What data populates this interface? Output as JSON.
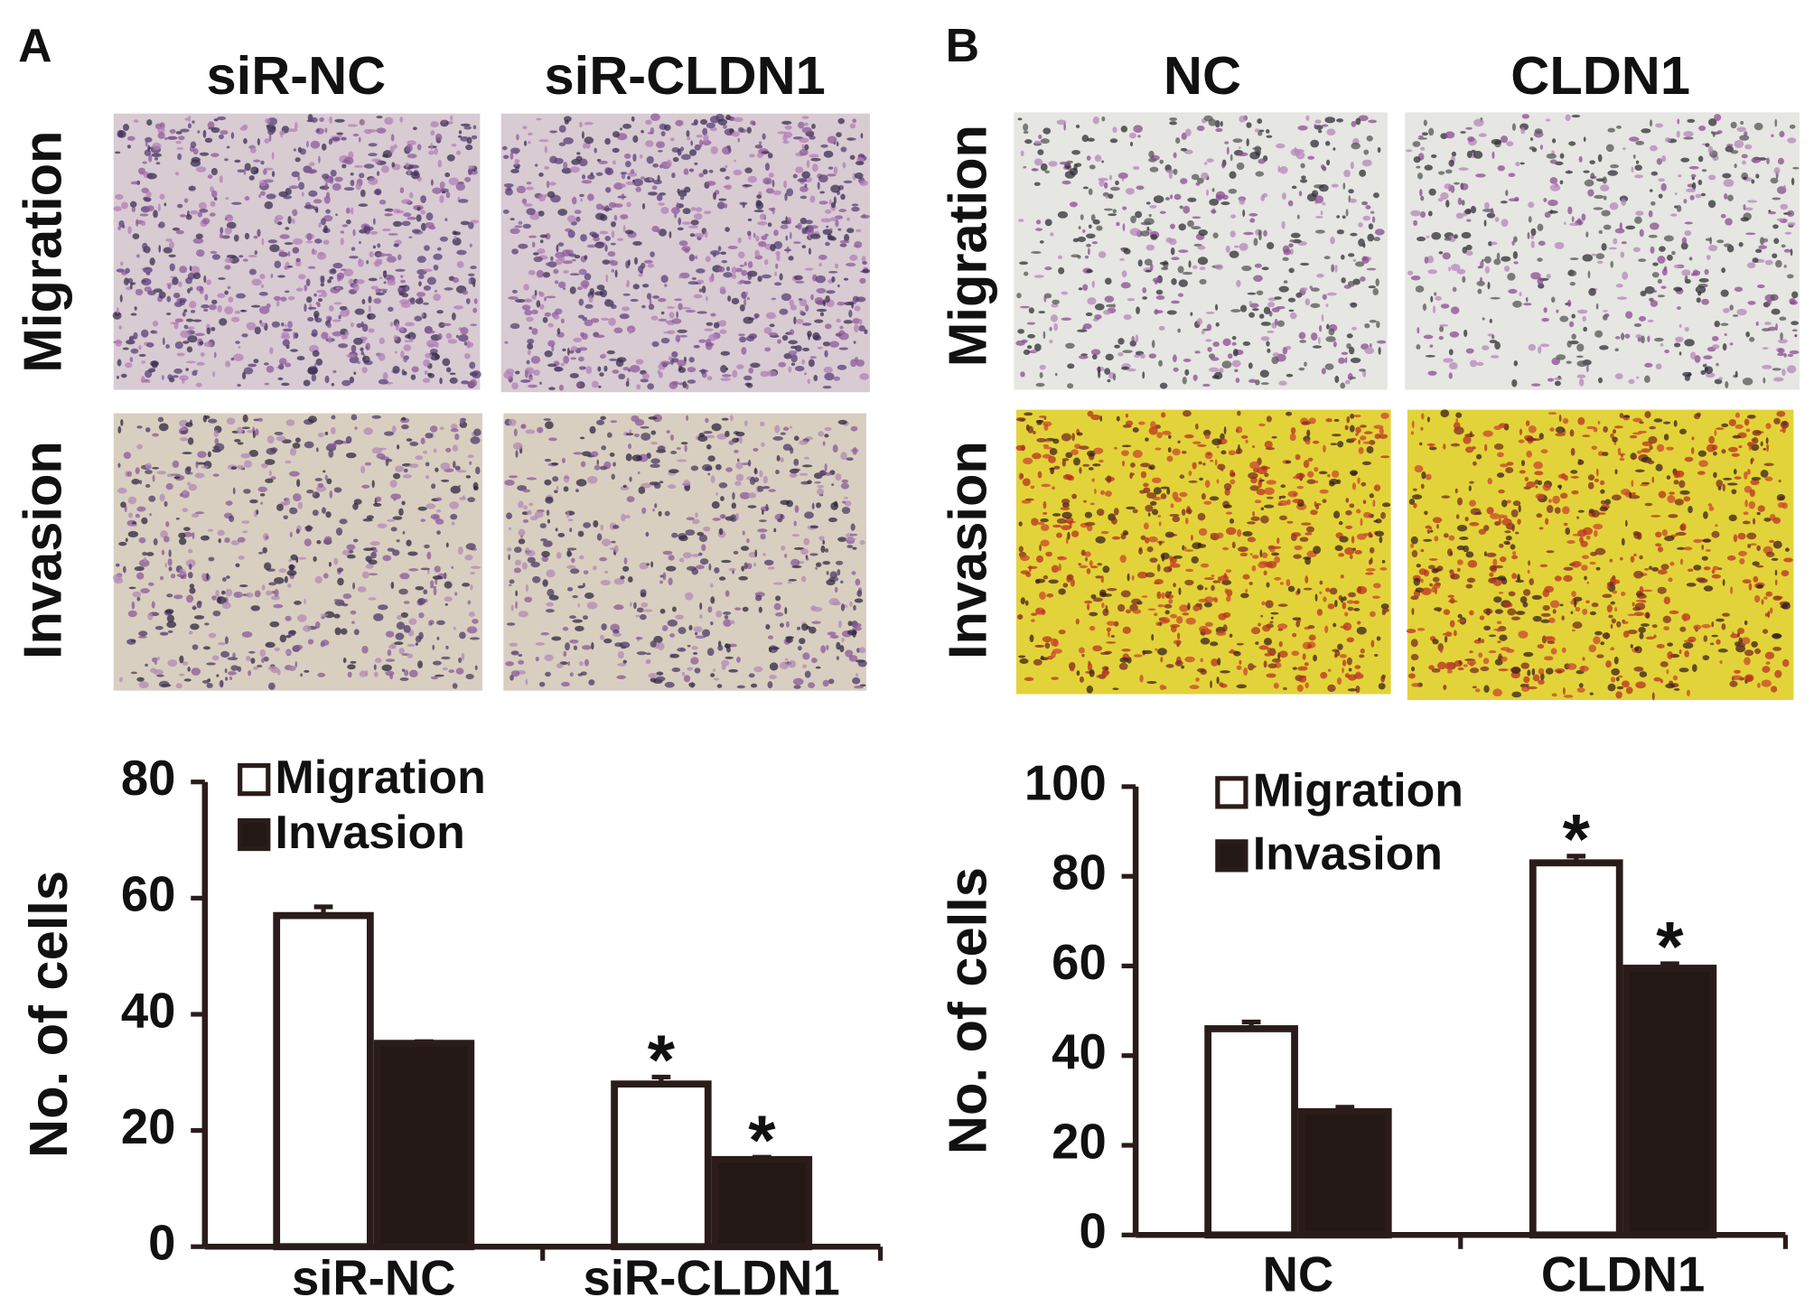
{
  "panels": [
    {
      "label": "A",
      "columns": [
        "siR-NC",
        "siR-CLDN1"
      ],
      "rows": [
        "Migration",
        "Invasion"
      ]
    },
    {
      "label": "B",
      "columns": [
        "NC",
        "CLDN1"
      ],
      "rows": [
        "Migration",
        "Invasion"
      ]
    }
  ],
  "chart_data": [
    {
      "type": "bar",
      "y_label": "No. of cells",
      "categories": [
        "siR-NC",
        "siR-CLDN1"
      ],
      "ylim": [
        0,
        80
      ],
      "yticks": [
        0,
        20,
        40,
        60,
        80
      ],
      "series": [
        {
          "name": "Migration",
          "color": "#ffffff",
          "values": [
            57,
            28
          ],
          "errors": [
            1.5,
            1.2
          ],
          "significance": [
            null,
            "*"
          ]
        },
        {
          "name": "Invasion",
          "color": "#231816",
          "values": [
            35,
            15
          ],
          "errors": [
            0.3,
            0.4
          ],
          "significance": [
            null,
            "*"
          ]
        }
      ]
    },
    {
      "type": "bar",
      "y_label": "No. of cells",
      "categories": [
        "NC",
        "CLDN1"
      ],
      "ylim": [
        0,
        100
      ],
      "yticks": [
        0,
        20,
        40,
        60,
        80,
        100
      ],
      "series": [
        {
          "name": "Migration",
          "color": "#ffffff",
          "values": [
            46,
            83
          ],
          "errors": [
            1.5,
            1.5
          ],
          "significance": [
            null,
            "*"
          ]
        },
        {
          "name": "Invasion",
          "color": "#231816",
          "values": [
            27.5,
            59.5
          ],
          "errors": [
            1,
            1
          ],
          "significance": [
            null,
            "*"
          ]
        }
      ]
    }
  ]
}
